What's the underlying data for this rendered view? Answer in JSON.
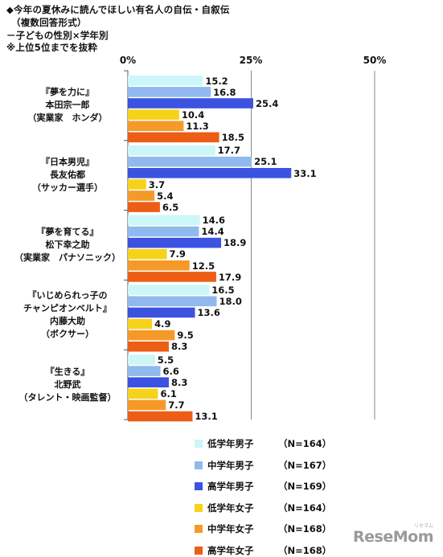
{
  "header": {
    "line1": "◆今年の夏休みに読んでほしい有名人の自伝・自叙伝",
    "line2": "（複数回答形式）",
    "line3": "－子どもの性別×学年別",
    "line4": "※上位5位までを抜粋"
  },
  "chart_data": {
    "type": "bar",
    "orientation": "horizontal",
    "xticks": [
      "0%",
      "25%",
      "50%"
    ],
    "xlim": [
      0,
      50
    ],
    "categories": [
      [
        "『夢を力に』",
        "本田宗一郎",
        "（実業家　ホンダ）"
      ],
      [
        "『日本男児』",
        "長友佑都",
        "（サッカー選手）"
      ],
      [
        "『夢を育てる』",
        "松下幸之助",
        "（実業家　パナソニック）"
      ],
      [
        "『いじめられっ子の",
        "チャンピオンベルト』",
        "内藤大助",
        "（ボクサー）"
      ],
      [
        "『生きる』",
        "北野武",
        "（タレント・映画監督）"
      ]
    ],
    "series": [
      {
        "name": "低学年男子",
        "n": "（N=164）",
        "color": "#ccf6f8",
        "values": [
          15.2,
          17.7,
          14.6,
          16.5,
          5.5
        ]
      },
      {
        "name": "中学年男子",
        "n": "（N=167）",
        "color": "#90b9ee",
        "values": [
          16.8,
          25.1,
          14.4,
          18.0,
          6.6
        ]
      },
      {
        "name": "高学年男子",
        "n": "（N=169）",
        "color": "#3b53e0",
        "values": [
          25.4,
          33.1,
          18.9,
          13.6,
          8.3
        ]
      },
      {
        "name": "低学年女子",
        "n": "（N=164）",
        "color": "#f7d21a",
        "values": [
          10.4,
          3.7,
          7.9,
          4.9,
          6.1
        ]
      },
      {
        "name": "中学年女子",
        "n": "（N=168）",
        "color": "#f59a28",
        "values": [
          11.3,
          5.4,
          12.5,
          9.5,
          7.7
        ]
      },
      {
        "name": "高学年女子",
        "n": "（N=168）",
        "color": "#ec5e16",
        "values": [
          18.5,
          6.5,
          17.9,
          8.3,
          13.1
        ]
      }
    ]
  },
  "logo": {
    "text": "ReseMom",
    "sub": "リセマム"
  }
}
